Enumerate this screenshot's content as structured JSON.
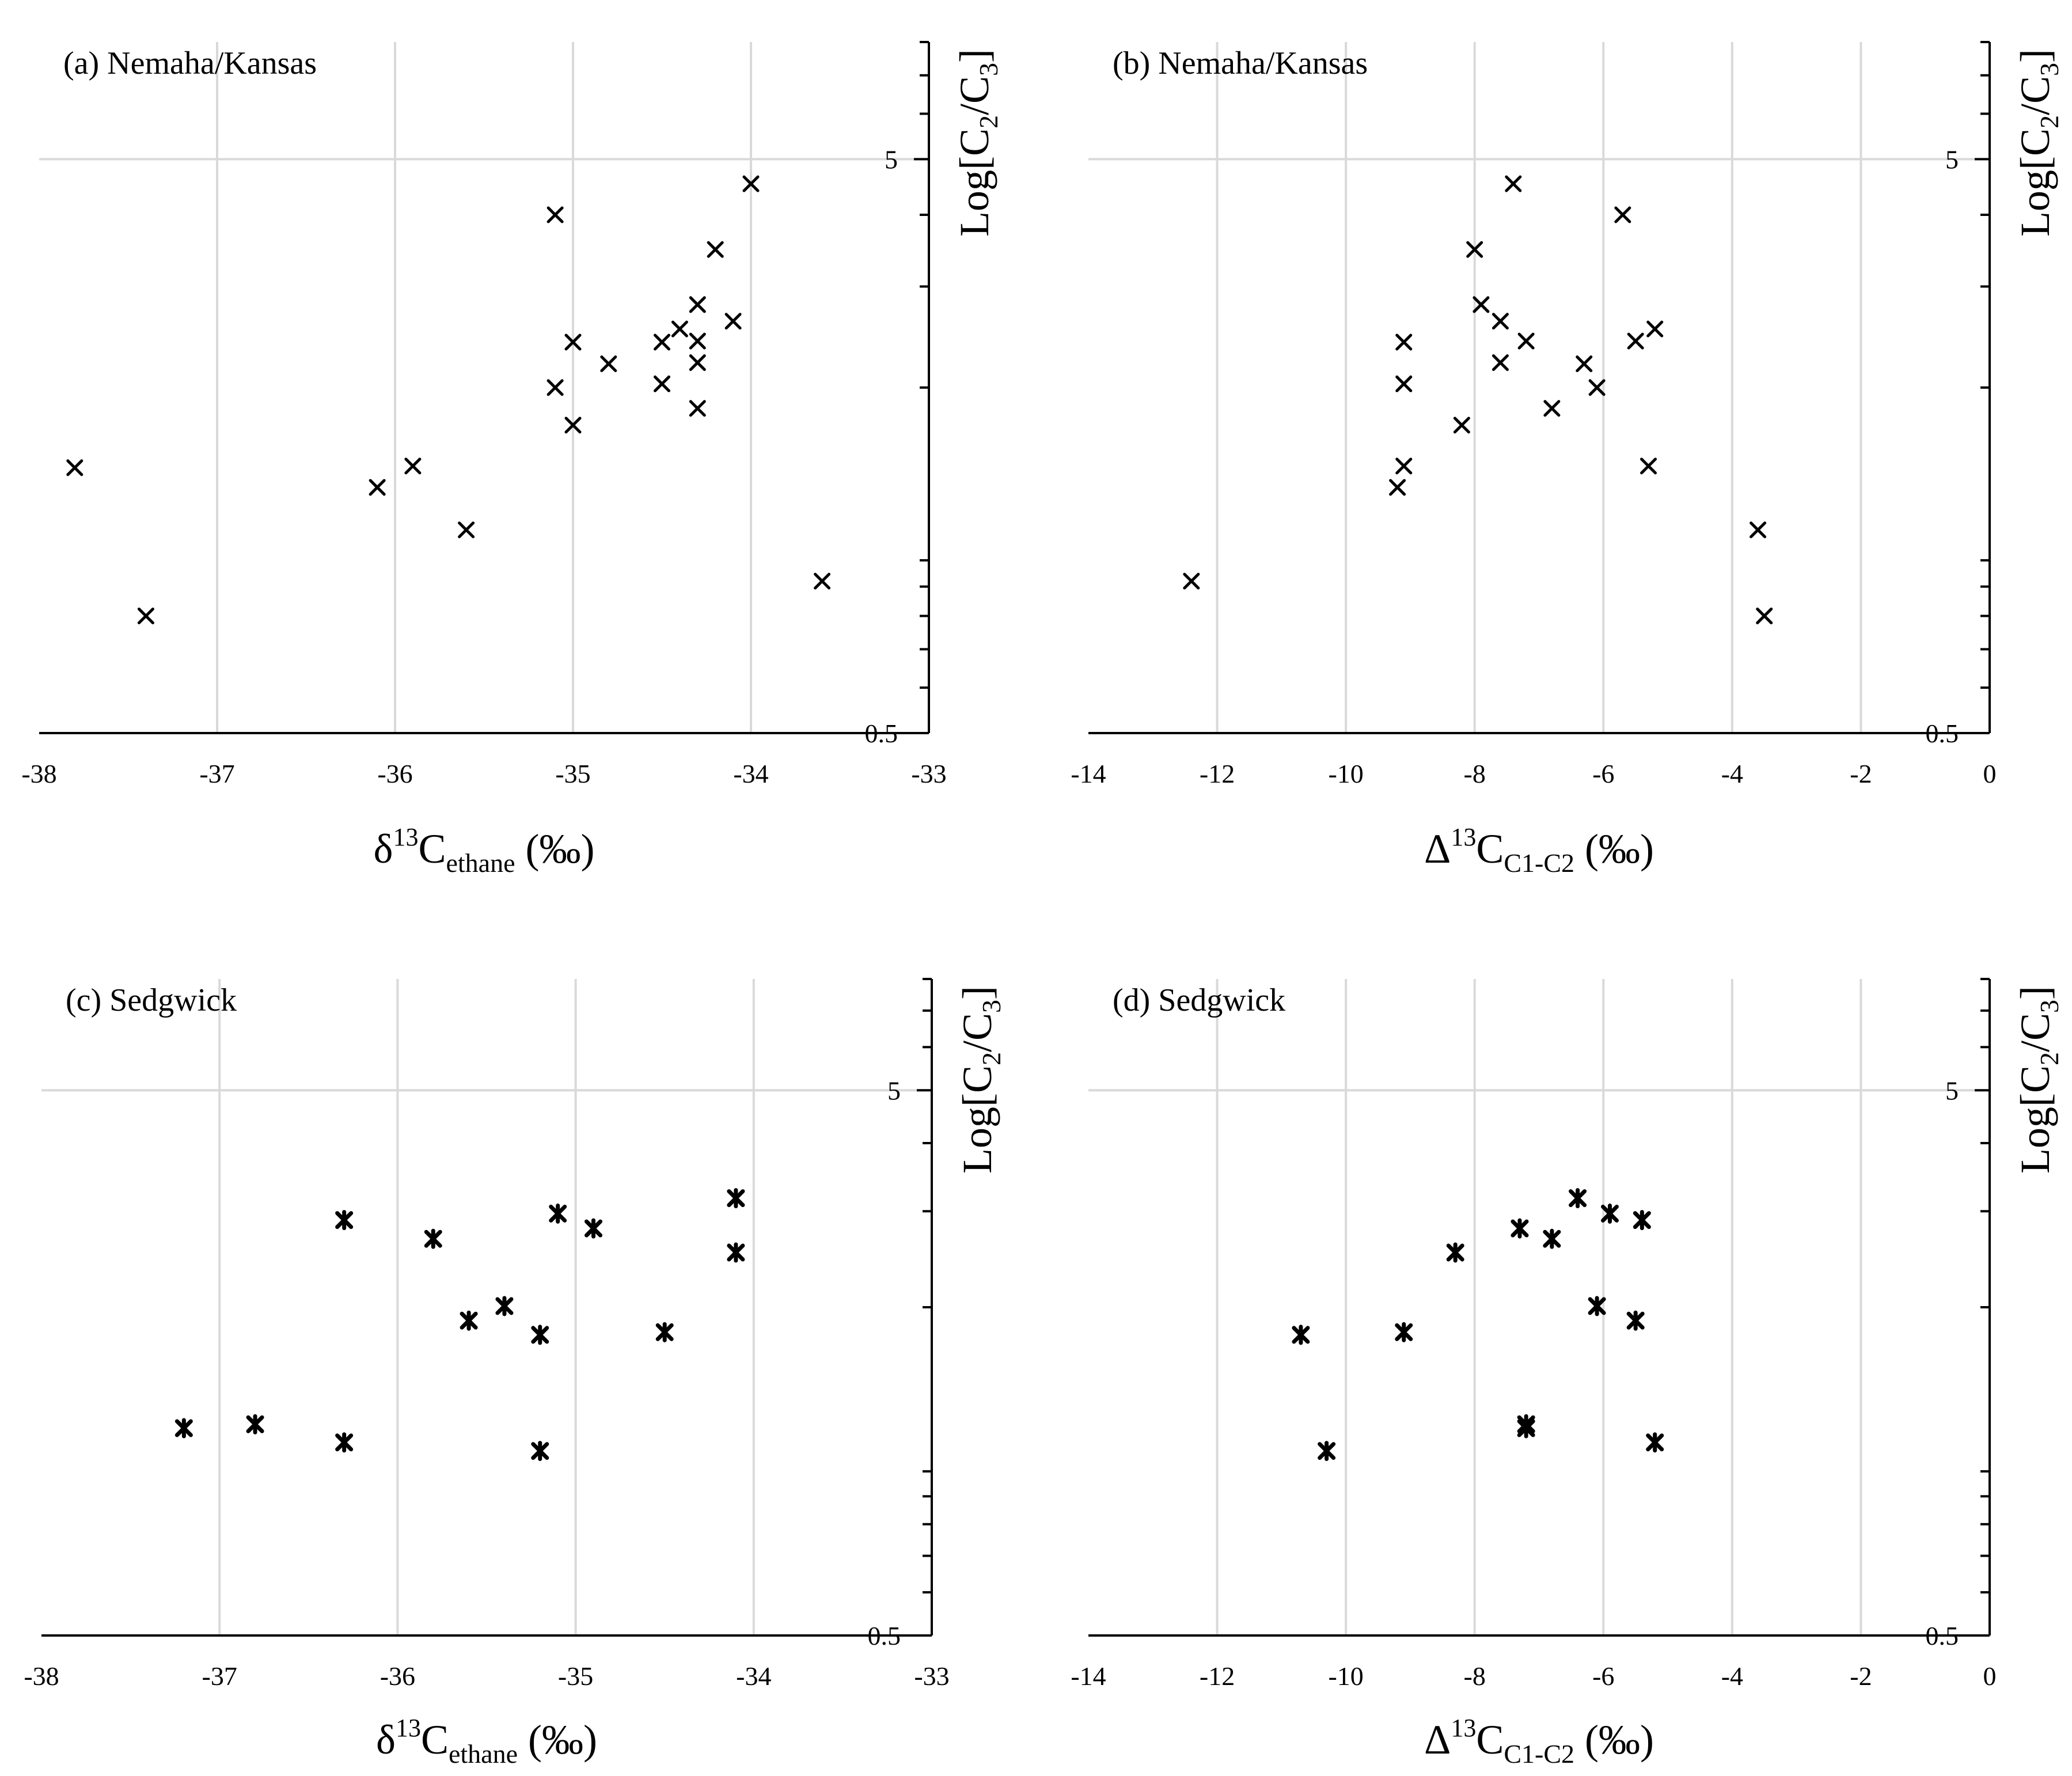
{
  "chart_data": [
    {
      "id": "a",
      "type": "scatter",
      "title": "(a) Nemaha/Kansas",
      "xlabel": "δ13Cethane (‰)",
      "xlabel_parts": {
        "main": "δ",
        "sup": "13",
        "base": "C",
        "sub": "ethane",
        "tail": " (‰)"
      },
      "ylabel": "Log[C2/C3]",
      "xlim": [
        -38,
        -33
      ],
      "xticks": [
        -38,
        -37,
        -36,
        -35,
        -34,
        -33
      ],
      "ylim": [
        0.5,
        8
      ],
      "yscale": "log",
      "ytick_labels": [
        "0.5",
        "5"
      ],
      "yticks": [
        0.5,
        5
      ],
      "marker": "x",
      "points": [
        {
          "x": -37.8,
          "y": 1.45
        },
        {
          "x": -37.4,
          "y": 0.8
        },
        {
          "x": -36.1,
          "y": 1.34
        },
        {
          "x": -35.9,
          "y": 1.46
        },
        {
          "x": -35.6,
          "y": 1.13
        },
        {
          "x": -35.1,
          "y": 4.0
        },
        {
          "x": -35.1,
          "y": 2.0
        },
        {
          "x": -35.0,
          "y": 2.4
        },
        {
          "x": -35.0,
          "y": 1.72
        },
        {
          "x": -34.8,
          "y": 2.2
        },
        {
          "x": -34.5,
          "y": 2.4
        },
        {
          "x": -34.5,
          "y": 2.03
        },
        {
          "x": -34.4,
          "y": 2.53
        },
        {
          "x": -34.3,
          "y": 2.79
        },
        {
          "x": -34.3,
          "y": 2.41
        },
        {
          "x": -34.3,
          "y": 2.21
        },
        {
          "x": -34.3,
          "y": 1.84
        },
        {
          "x": -34.2,
          "y": 3.48
        },
        {
          "x": -34.1,
          "y": 2.61
        },
        {
          "x": -34.0,
          "y": 4.53
        },
        {
          "x": -33.6,
          "y": 0.92
        }
      ]
    },
    {
      "id": "b",
      "type": "scatter",
      "title": "(b) Nemaha/Kansas",
      "xlabel": "Δ13CC1-C2 (‰)",
      "xlabel_parts": {
        "main": "Δ",
        "sup": "13",
        "base": "C",
        "sub": "C1-C2",
        "tail": " (‰)"
      },
      "ylabel": "Log[C2/C3]",
      "xlim": [
        -14,
        0
      ],
      "xticks": [
        -14,
        -12,
        -10,
        -8,
        -6,
        -4,
        -2,
        0
      ],
      "ylim": [
        0.5,
        8
      ],
      "yscale": "log",
      "ytick_labels": [
        "0.5",
        "5"
      ],
      "yticks": [
        0.5,
        5
      ],
      "marker": "x",
      "points": [
        {
          "x": -12.4,
          "y": 0.92
        },
        {
          "x": -9.2,
          "y": 1.34
        },
        {
          "x": -9.1,
          "y": 1.46
        },
        {
          "x": -9.1,
          "y": 2.03
        },
        {
          "x": -9.1,
          "y": 2.4
        },
        {
          "x": -8.2,
          "y": 1.72
        },
        {
          "x": -8.0,
          "y": 3.48
        },
        {
          "x": -7.9,
          "y": 2.79
        },
        {
          "x": -7.6,
          "y": 2.61
        },
        {
          "x": -7.6,
          "y": 2.21
        },
        {
          "x": -7.4,
          "y": 4.53
        },
        {
          "x": -7.2,
          "y": 2.41
        },
        {
          "x": -6.8,
          "y": 1.84
        },
        {
          "x": -6.3,
          "y": 2.2
        },
        {
          "x": -6.1,
          "y": 2.0
        },
        {
          "x": -5.7,
          "y": 4.0
        },
        {
          "x": -5.5,
          "y": 2.41
        },
        {
          "x": -5.3,
          "y": 1.46
        },
        {
          "x": -5.2,
          "y": 2.53
        },
        {
          "x": -3.6,
          "y": 1.13
        },
        {
          "x": -3.5,
          "y": 0.8
        }
      ]
    },
    {
      "id": "c",
      "type": "scatter",
      "title": "(c) Sedgwick",
      "xlabel": "δ13Cethane (‰)",
      "xlabel_parts": {
        "main": "δ",
        "sup": "13",
        "base": "C",
        "sub": "ethane",
        "tail": " (‰)"
      },
      "ylabel": "Log[C2/C3]",
      "xlim": [
        -38,
        -33
      ],
      "xticks": [
        -38,
        -37,
        -36,
        -35,
        -34,
        -33
      ],
      "ylim": [
        0.5,
        8
      ],
      "yscale": "log",
      "ytick_labels": [
        "0.5",
        "5"
      ],
      "yticks": [
        0.5,
        5
      ],
      "marker": "asterisk",
      "points": [
        {
          "x": -37.2,
          "y": 1.2
        },
        {
          "x": -36.8,
          "y": 1.22
        },
        {
          "x": -36.3,
          "y": 2.89
        },
        {
          "x": -36.3,
          "y": 1.13
        },
        {
          "x": -35.8,
          "y": 2.67
        },
        {
          "x": -35.6,
          "y": 1.89
        },
        {
          "x": -35.4,
          "y": 2.01
        },
        {
          "x": -35.2,
          "y": 1.78
        },
        {
          "x": -35.2,
          "y": 1.09
        },
        {
          "x": -35.1,
          "y": 2.97
        },
        {
          "x": -34.9,
          "y": 2.79
        },
        {
          "x": -34.5,
          "y": 1.8
        },
        {
          "x": -34.1,
          "y": 3.17
        },
        {
          "x": -34.1,
          "y": 2.52
        }
      ]
    },
    {
      "id": "d",
      "type": "scatter",
      "title": "(d) Sedgwick",
      "xlabel": "Δ13CC1-C2 (‰)",
      "xlabel_parts": {
        "main": "Δ",
        "sup": "13",
        "base": "C",
        "sub": "C1-C2",
        "tail": " (‰)"
      },
      "ylabel": "Log[C2/C3]",
      "xlim": [
        -14,
        0
      ],
      "xticks": [
        -14,
        -12,
        -10,
        -8,
        -6,
        -4,
        -2,
        0
      ],
      "ylim": [
        0.5,
        8
      ],
      "yscale": "log",
      "ytick_labels": [
        "0.5",
        "5"
      ],
      "yticks": [
        0.5,
        5
      ],
      "marker": "asterisk",
      "points": [
        {
          "x": -10.7,
          "y": 1.78
        },
        {
          "x": -10.3,
          "y": 1.09
        },
        {
          "x": -9.1,
          "y": 1.8
        },
        {
          "x": -8.3,
          "y": 2.52
        },
        {
          "x": -7.3,
          "y": 2.79
        },
        {
          "x": -7.2,
          "y": 1.22
        },
        {
          "x": -7.2,
          "y": 1.2
        },
        {
          "x": -6.8,
          "y": 2.67
        },
        {
          "x": -6.4,
          "y": 3.17
        },
        {
          "x": -6.1,
          "y": 2.01
        },
        {
          "x": -5.9,
          "y": 2.97
        },
        {
          "x": -5.5,
          "y": 1.89
        },
        {
          "x": -5.4,
          "y": 2.89
        },
        {
          "x": -5.2,
          "y": 1.13
        }
      ]
    }
  ]
}
